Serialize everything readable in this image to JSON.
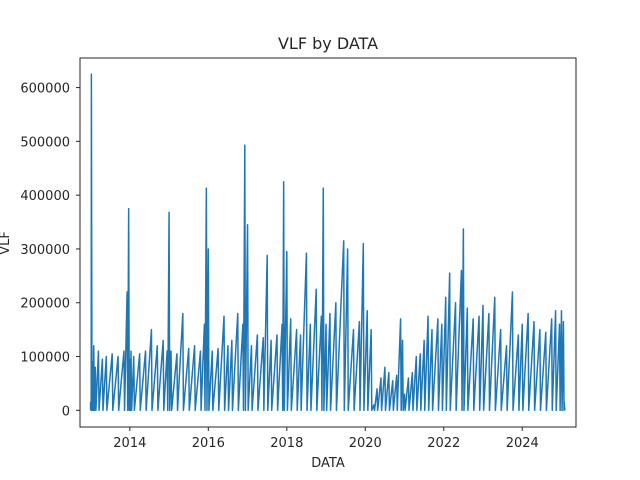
{
  "chart_data": {
    "type": "line",
    "title": "VLF by DATA",
    "xlabel": "DATA",
    "ylabel": "VLF",
    "xlim": [
      2012.73,
      2025.37
    ],
    "ylim": [
      -31000,
      655000
    ],
    "x_ticks": [
      2014,
      2016,
      2018,
      2020,
      2022,
      2024
    ],
    "x_tick_labels": [
      "2014",
      "2016",
      "2018",
      "2020",
      "2022",
      "2024"
    ],
    "y_ticks": [
      0,
      100000,
      200000,
      300000,
      400000,
      500000,
      600000
    ],
    "y_tick_labels": [
      "0",
      "100000",
      "200000",
      "300000",
      "400000",
      "500000",
      "600000"
    ],
    "grid": false,
    "legend": "none",
    "series": [
      {
        "color": "#1f77b4",
        "x": [
          2013.0,
          2013.02,
          2013.05,
          2013.08,
          2013.12,
          2013.2,
          2013.3,
          2013.4,
          2013.55,
          2013.7,
          2013.85,
          2013.93,
          2013.97,
          2014.0,
          2014.03,
          2014.1,
          2014.25,
          2014.4,
          2014.55,
          2014.7,
          2014.85,
          2014.95,
          2015.0,
          2015.05,
          2015.2,
          2015.35,
          2015.5,
          2015.65,
          2015.8,
          2015.9,
          2015.95,
          2016.0,
          2016.1,
          2016.25,
          2016.4,
          2016.5,
          2016.6,
          2016.75,
          2016.88,
          2016.93,
          2017.0,
          2017.1,
          2017.25,
          2017.4,
          2017.5,
          2017.6,
          2017.75,
          2017.88,
          2017.92,
          2018.0,
          2018.1,
          2018.25,
          2018.35,
          2018.5,
          2018.6,
          2018.75,
          2018.88,
          2018.93,
          2019.0,
          2019.1,
          2019.25,
          2019.45,
          2019.55,
          2019.7,
          2019.85,
          2019.95,
          2020.05,
          2020.15,
          2020.22,
          2020.3,
          2020.4,
          2020.5,
          2020.6,
          2020.7,
          2020.8,
          2020.9,
          2020.95,
          2021.0,
          2021.1,
          2021.2,
          2021.3,
          2021.4,
          2021.5,
          2021.6,
          2021.7,
          2021.85,
          2021.95,
          2022.05,
          2022.15,
          2022.3,
          2022.45,
          2022.5,
          2022.6,
          2022.75,
          2022.9,
          2023.0,
          2023.15,
          2023.3,
          2023.45,
          2023.6,
          2023.75,
          2023.9,
          2024.0,
          2024.15,
          2024.3,
          2024.45,
          2024.6,
          2024.75,
          2024.85,
          2024.95,
          2025.0,
          2025.05,
          2025.07
        ],
        "values": [
          15000,
          625000,
          90000,
          120000,
          80000,
          110000,
          95000,
          100000,
          105000,
          100000,
          110000,
          220000,
          375000,
          95000,
          110000,
          100000,
          105000,
          110000,
          150000,
          120000,
          130000,
          110000,
          368000,
          110000,
          105000,
          180000,
          115000,
          120000,
          110000,
          160000,
          413000,
          300000,
          110000,
          115000,
          175000,
          120000,
          130000,
          180000,
          160000,
          493000,
          345000,
          120000,
          140000,
          135000,
          288000,
          130000,
          140000,
          160000,
          425000,
          295000,
          170000,
          150000,
          140000,
          292000,
          160000,
          225000,
          175000,
          413000,
          160000,
          180000,
          200000,
          315000,
          300000,
          150000,
          165000,
          310000,
          185000,
          150000,
          10000,
          40000,
          60000,
          80000,
          70000,
          55000,
          65000,
          170000,
          130000,
          30000,
          60000,
          70000,
          100000,
          105000,
          130000,
          175000,
          150000,
          170000,
          160000,
          210000,
          255000,
          200000,
          260000,
          337000,
          190000,
          170000,
          175000,
          195000,
          180000,
          210000,
          150000,
          120000,
          220000,
          140000,
          160000,
          180000,
          165000,
          150000,
          145000,
          170000,
          185000,
          160000,
          185000,
          165000,
          15000
        ]
      }
    ]
  }
}
